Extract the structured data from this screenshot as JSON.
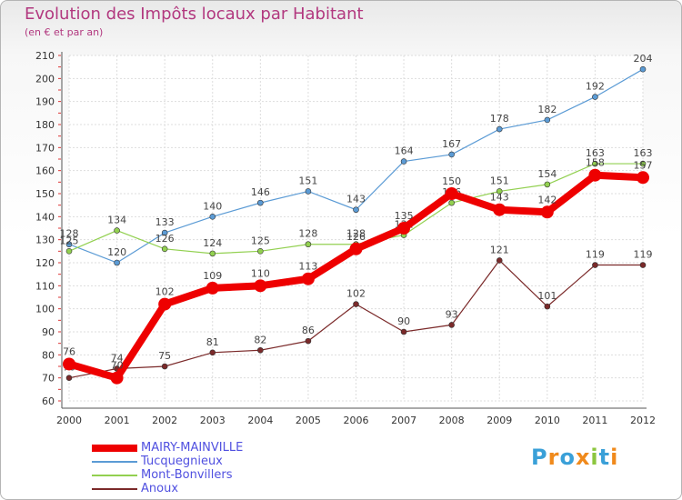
{
  "title": "Evolution des Impôts locaux par Habitant",
  "subtitle": "(en € et par an)",
  "logo": {
    "letters": [
      "P",
      "r",
      "o",
      "x",
      "i",
      "t",
      "i"
    ],
    "colors": [
      "#3aa0d8",
      "#f08a1c",
      "#3aa0d8",
      "#f08a1c",
      "#8cc63f",
      "#3aa0d8",
      "#f08a1c"
    ]
  },
  "chart_data": {
    "type": "line",
    "x": [
      2000,
      2001,
      2002,
      2003,
      2004,
      2005,
      2006,
      2007,
      2008,
      2009,
      2010,
      2011,
      2012
    ],
    "ylim": [
      60,
      210
    ],
    "yticks": [
      60,
      70,
      80,
      90,
      100,
      110,
      120,
      130,
      140,
      150,
      160,
      170,
      180,
      190,
      200,
      210
    ],
    "grid": true,
    "legend": "bottom-left",
    "series": [
      {
        "name": "Tucquegnieux",
        "color": "#5b9bd5",
        "width": 1,
        "values": [
          128,
          120,
          133,
          140,
          146,
          151,
          143,
          164,
          167,
          178,
          182,
          192,
          204
        ]
      },
      {
        "name": "Mont-Bonvillers",
        "color": "#92d050",
        "width": 1,
        "values": [
          125,
          134,
          126,
          124,
          125,
          128,
          128,
          132,
          146,
          151,
          154,
          163,
          163
        ]
      },
      {
        "name": "Anoux",
        "color": "#7b2a2a",
        "width": 1,
        "values": [
          70,
          74,
          75,
          81,
          82,
          86,
          102,
          90,
          93,
          121,
          101,
          119,
          119
        ]
      },
      {
        "name": "MAIRY-MAINVILLE",
        "color": "#ee0000",
        "width": 8,
        "values": [
          76,
          70,
          102,
          109,
          110,
          113,
          126,
          135,
          150,
          143,
          142,
          158,
          157
        ]
      }
    ],
    "legend_order": [
      3,
      0,
      1,
      2
    ]
  }
}
